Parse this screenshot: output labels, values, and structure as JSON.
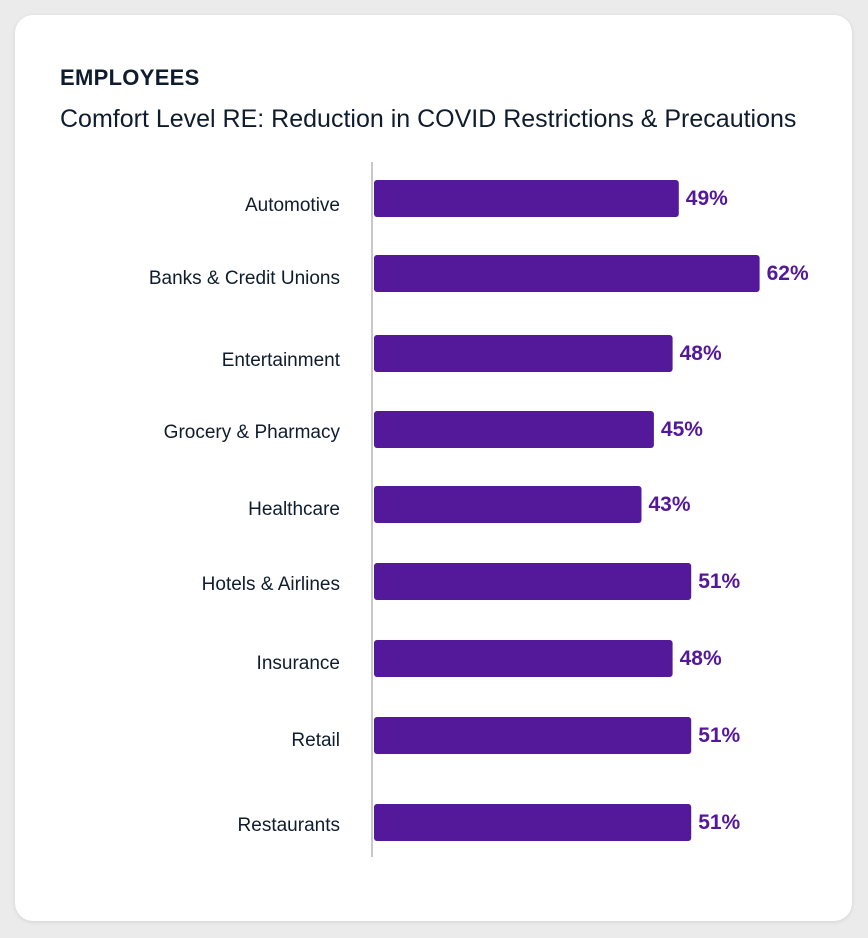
{
  "header": {
    "eyebrow": "EMPLOYEES",
    "subtitle": "Comfort Level RE: Reduction in COVID Restrictions & Precautions"
  },
  "colors": {
    "bar": "#54189a",
    "value_label": "#54189a",
    "axis": "#c8c8c8",
    "text": "#0f1c2e",
    "card": "#ffffff",
    "background": "#ebebeb"
  },
  "chart_data": {
    "type": "bar",
    "orientation": "horizontal",
    "categories": [
      "Automotive",
      "Banks & Credit Unions",
      "Entertainment",
      "Grocery & Pharmacy",
      "Healthcare",
      "Hotels & Airlines",
      "Insurance",
      "Retail",
      "Restaurants"
    ],
    "values": [
      49,
      62,
      48,
      45,
      43,
      51,
      48,
      51,
      51
    ],
    "value_labels": [
      "49%",
      "62%",
      "48%",
      "45%",
      "43%",
      "51%",
      "48%",
      "51%",
      "51%"
    ],
    "unit": "%",
    "title": "EMPLOYEES",
    "subtitle": "Comfort Level RE: Reduction in COVID Restrictions & Precautions",
    "xlabel": "",
    "ylabel": "",
    "xlim": [
      0,
      100
    ],
    "grid": false,
    "legend": "none"
  }
}
